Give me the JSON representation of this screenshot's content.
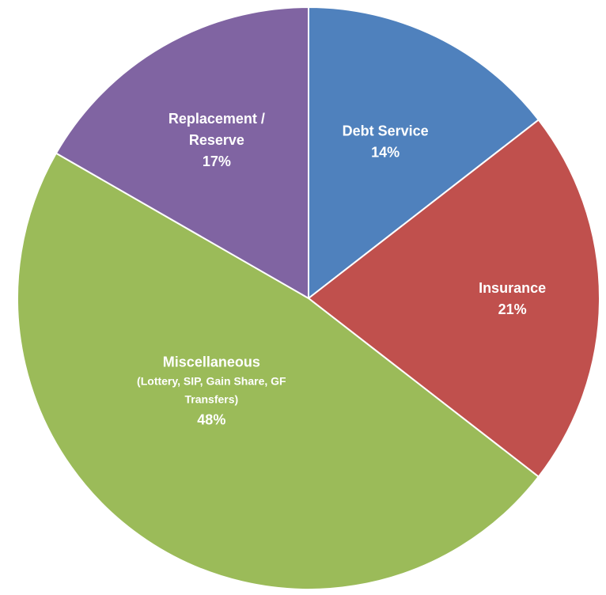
{
  "chart_data": {
    "type": "pie",
    "title": "",
    "start": "12 o'clock",
    "direction": "clockwise",
    "slices": [
      {
        "label_lines": [
          "Debt Service"
        ],
        "sub_lines": [],
        "value_label": "14%",
        "value": 14.5,
        "color": "#4f81bd"
      },
      {
        "label_lines": [
          "Insurance"
        ],
        "sub_lines": [],
        "value_label": "21%",
        "value": 21,
        "color": "#c0504d"
      },
      {
        "label_lines": [
          "Miscellaneous"
        ],
        "sub_lines": [
          "(Lottery, SIP, Gain Share, GF",
          "Transfers)"
        ],
        "value_label": "48%",
        "value": 47.8,
        "color": "#9bbb59"
      },
      {
        "label_lines": [
          "Replacement /",
          "Reserve"
        ],
        "sub_lines": [],
        "value_label": "17%",
        "value": 16.7,
        "color": "#8064a2"
      }
    ]
  }
}
